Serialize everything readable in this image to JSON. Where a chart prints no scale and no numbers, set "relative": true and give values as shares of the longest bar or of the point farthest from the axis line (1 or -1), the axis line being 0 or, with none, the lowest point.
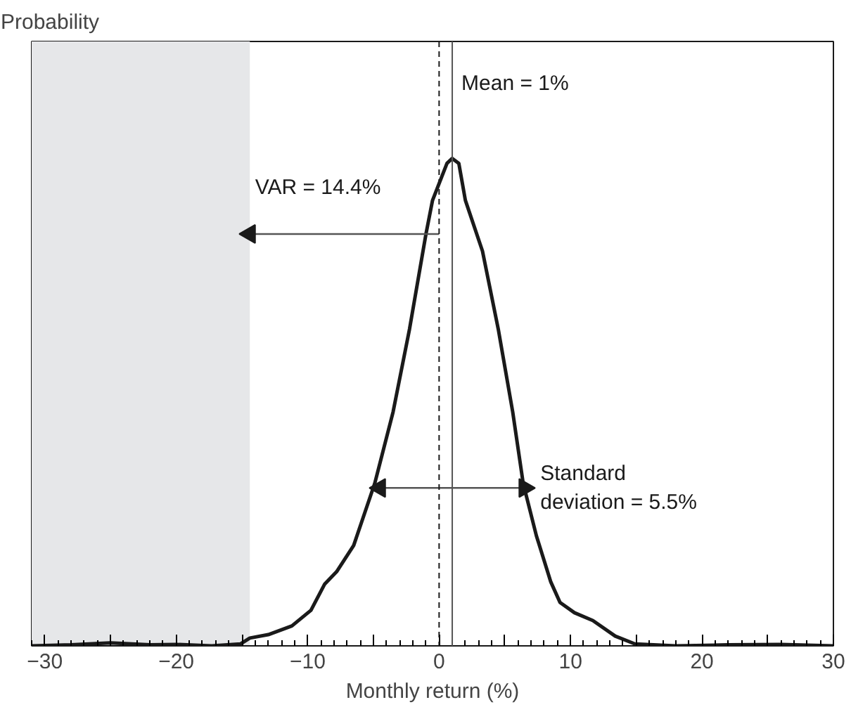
{
  "chart_data": {
    "type": "line",
    "relative": true,
    "xlabel": "Monthly return (%)",
    "xlim": [
      -31,
      30
    ],
    "xticks": [
      {
        "value": -30,
        "label": "−30"
      },
      {
        "value": -25,
        "label": null
      },
      {
        "value": -20,
        "label": "−20"
      },
      {
        "value": -15,
        "label": null
      },
      {
        "value": -10,
        "label": "−10"
      },
      {
        "value": -5,
        "label": null
      },
      0,
      {
        "value": 5,
        "label": null
      },
      10,
      {
        "value": 15,
        "label": null
      },
      20,
      {
        "value": 25,
        "label": null
      },
      30
    ],
    "grid": false,
    "series": [
      {
        "color": "#1a1a1a",
        "marker": "none",
        "line_style": "solid",
        "x": [
          -31,
          -28,
          -25,
          -22,
          -20,
          -17.3,
          -15.1,
          -14.4,
          -13,
          -11.2,
          -9.75,
          -8.7,
          -7.8,
          -6.5,
          -4.9,
          -3.5,
          -2.25,
          -1,
          -0.5,
          0.6,
          1,
          1.5,
          2,
          3.3,
          4.5,
          5.6,
          6.4,
          7.4,
          8.5,
          9.2,
          10.3,
          11.7,
          13.4,
          14.9,
          18,
          22,
          26,
          30
        ],
        "values": [
          0,
          0.002,
          0.006,
          0.002,
          0.003,
          0,
          0.004,
          0.016,
          0.023,
          0.041,
          0.073,
          0.127,
          0.152,
          0.206,
          0.333,
          0.48,
          0.65,
          0.845,
          0.914,
          0.99,
          1,
          0.99,
          0.914,
          0.81,
          0.65,
          0.48,
          0.333,
          0.226,
          0.131,
          0.089,
          0.068,
          0.052,
          0.02,
          0.004,
          0,
          0.002,
          0.003,
          0
        ]
      },
      {
        "type": "line",
        "color": "#555555",
        "marker": "none",
        "line_style": "solid",
        "x": [
          0,
          -14.4
        ],
        "values": [
          0.845,
          0.845
        ]
      },
      {
        "type": "line",
        "color": "#555555",
        "marker": "none",
        "line_style": "solid",
        "x": [
          -4.5,
          6.5
        ],
        "values": [
          0.324,
          0.324
        ]
      },
      {
        "type": "scatter",
        "color": "#1a1a1a",
        "marker": "triangle",
        "x": [
          -14.4,
          -4.5,
          6.5
        ],
        "values": [
          0.845,
          0.324,
          0.324
        ]
      }
    ],
    "bands": [
      {
        "axis": "x",
        "from": -31,
        "to": -14.4,
        "color": "#e6e7e9",
        "label": null
      }
    ],
    "ref_lines": [
      {
        "axis": "x",
        "value": 0,
        "line_style": "dashed",
        "color": "#1a1a1a",
        "label": null
      },
      {
        "axis": "x",
        "value": 1,
        "line_style": "solid",
        "color": "#555555",
        "label": "Mean = 1%"
      }
    ],
    "annotations": [
      "Probability",
      {
        "text": "VAR = 14.4%",
        "x": -14,
        "y": 0.94
      },
      "Standard\ndeviation = 5.5%"
    ]
  }
}
